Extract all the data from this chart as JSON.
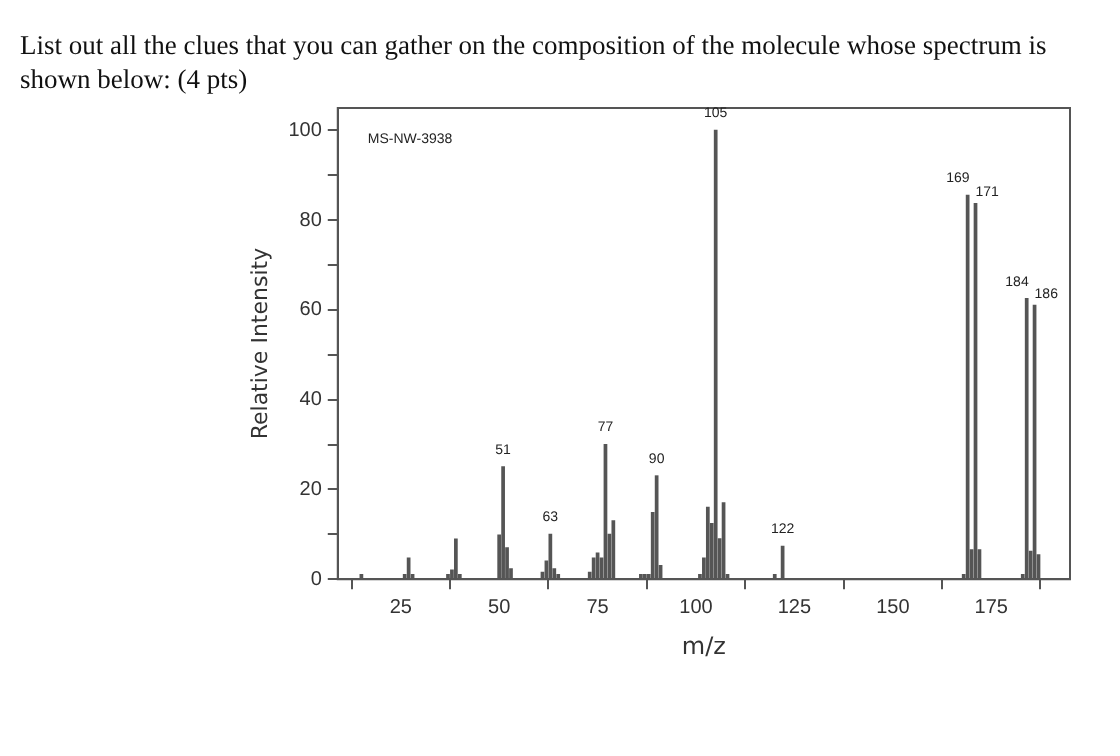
{
  "chart_data": {
    "type": "bar",
    "title": "List out all the clues that you can gather on the composition of the molecule whose spectrum is shown below: (4 pts)",
    "xlabel": "m/z",
    "ylabel": "Relative Intensity",
    "x": [
      15,
      26,
      27,
      28,
      37,
      38,
      39,
      40,
      50,
      51,
      52,
      53,
      61,
      62,
      63,
      64,
      65,
      73,
      74,
      75,
      76,
      77,
      78,
      79,
      86,
      87,
      88,
      89,
      90,
      91,
      101,
      102,
      103,
      104,
      105,
      106,
      107,
      108,
      120,
      122,
      168,
      169,
      170,
      171,
      172,
      183,
      184,
      185,
      186,
      187
    ],
    "values": [
      1,
      1,
      4.7,
      1,
      1,
      2,
      8.9,
      1,
      9.8,
      25,
      7,
      2.3,
      1.5,
      4,
      10,
      2.3,
      1,
      1.5,
      4.7,
      5.8,
      4.7,
      30,
      10,
      13,
      1,
      1,
      1,
      14.8,
      23,
      3,
      1,
      4.7,
      16,
      12.4,
      100,
      9,
      17,
      1,
      1,
      7.3,
      1,
      85.5,
      6.5,
      83.7,
      6.5,
      1,
      62.5,
      6.2,
      61,
      5.4
    ],
    "color": "#555555",
    "xlim": [
      9,
      195
    ],
    "xticks": [
      25,
      50,
      75,
      100,
      125,
      150,
      175
    ],
    "ylim": [
      0,
      105
    ],
    "yticks": [
      0,
      {
        "value": 10,
        "label": null
      },
      20,
      {
        "value": 30,
        "label": null
      },
      40,
      {
        "value": 50,
        "label": null
      },
      60,
      {
        "value": 70,
        "label": null
      },
      80,
      {
        "value": 90,
        "label": null
      },
      100
    ],
    "grid": false,
    "legend": false,
    "annotations": [
      "MS-NW-3938",
      {
        "text": "51",
        "x": 51,
        "y": 25
      },
      {
        "text": "63",
        "x": 63,
        "y": 10
      },
      {
        "text": "77",
        "x": 77,
        "y": 30
      },
      {
        "text": "90",
        "x": 90,
        "y": 23
      },
      {
        "text": "105",
        "x": 105,
        "y": 100
      },
      {
        "text": "122",
        "x": 122,
        "y": 7.3
      },
      {
        "text": "169",
        "x": 169,
        "y": 85.5
      },
      {
        "text": "171",
        "x": 171,
        "y": 83.7
      },
      {
        "text": "184",
        "x": 184,
        "y": 62.5
      },
      {
        "text": "186",
        "x": 186,
        "y": 61
      }
    ]
  }
}
